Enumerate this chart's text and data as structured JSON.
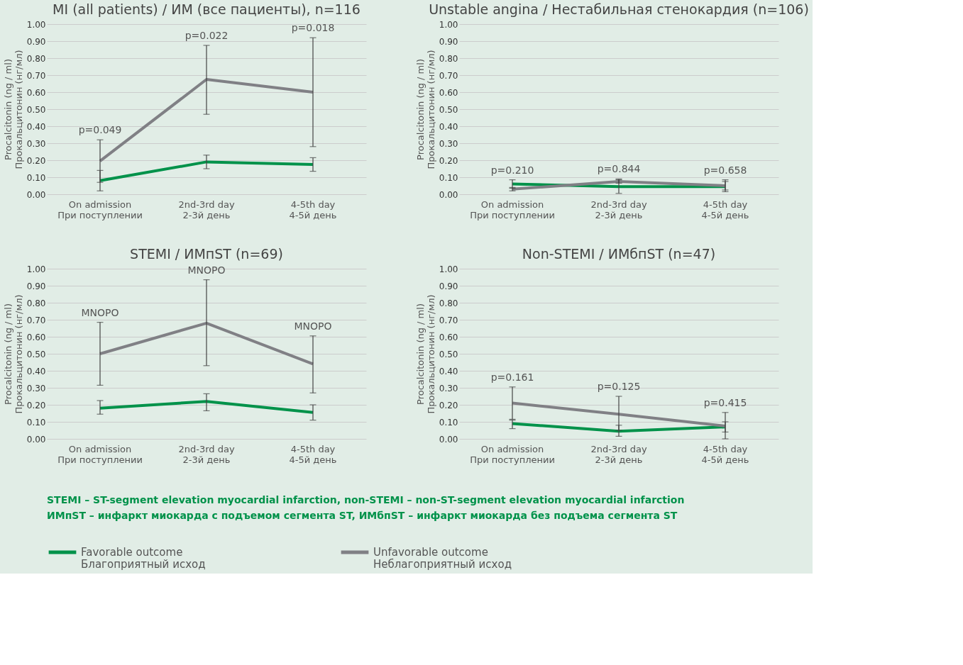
{
  "chart_data": [
    {
      "type": "line",
      "title": "MI (all patients) / ИМ (все пациенты), n=116",
      "ylabel": "Procalcitonin (ng / ml)\nПрокальцитонин (нг/мл)",
      "categories": [
        "On admission\nПри поступлении",
        "2nd-3rd day\n2-3й день",
        "4-5th day\n4-5й день"
      ],
      "ylim": [
        0,
        1
      ],
      "yticks": [
        {
          "value": 0,
          "label": "0.00"
        },
        {
          "value": 0.1,
          "label": "0.10"
        },
        {
          "value": 0.2,
          "label": "0.20"
        },
        {
          "value": 0.3,
          "label": "0.30"
        },
        {
          "value": 0.4,
          "label": "0.40"
        },
        {
          "value": 0.5,
          "label": "0.50"
        },
        {
          "value": 0.6,
          "label": "0.60"
        },
        {
          "value": 0.7,
          "label": "0.70"
        },
        {
          "value": 0.8,
          "label": "0.80"
        },
        {
          "value": 0.9,
          "label": "0.90"
        },
        {
          "value": 1,
          "label": "1.00"
        }
      ],
      "grid": "y",
      "legend": "bottom",
      "marker": "none",
      "line_style": "solid",
      "series": [
        {
          "name": "Favorable outcome\nБлагоприятный исход",
          "color": "#00924a",
          "values": [
            0.08,
            0.19,
            0.175
          ],
          "errors": [
            [
              0.02,
              0.14
            ],
            [
              0.15,
              0.23
            ],
            [
              0.135,
              0.215
            ]
          ]
        },
        {
          "name": "Unfavorable outcome\nНеблагоприятный исход",
          "color": "#808085",
          "values": [
            0.195,
            0.675,
            0.6
          ],
          "errors": [
            [
              0.07,
              0.32
            ],
            [
              0.47,
              0.875
            ],
            [
              0.28,
              0.92
            ]
          ]
        }
      ],
      "annotations": [
        "p=0.049",
        "p=0.022",
        "p=0.018"
      ]
    },
    {
      "type": "line",
      "title": "Unstable angina / Нестабильная стенокардия (n=106)",
      "ylabel": "Procalcitonin (ng / ml)\nПрокальцитонин (нг/мл)",
      "categories": [
        "On admission\nПри поступлении",
        "2nd-3rd day\n2-3й день",
        "4-5th day\n4-5й день"
      ],
      "ylim": [
        0,
        1
      ],
      "yticks": [
        {
          "value": 0,
          "label": "0.00"
        },
        {
          "value": 0.1,
          "label": "0.10"
        },
        {
          "value": 0.2,
          "label": "0.20"
        },
        {
          "value": 0.3,
          "label": "0.30"
        },
        {
          "value": 0.4,
          "label": "0.40"
        },
        {
          "value": 0.5,
          "label": "0.50"
        },
        {
          "value": 0.6,
          "label": "0.60"
        },
        {
          "value": 0.7,
          "label": "0.70"
        },
        {
          "value": 0.8,
          "label": "0.80"
        },
        {
          "value": 0.9,
          "label": "0.90"
        },
        {
          "value": 1,
          "label": "1.00"
        }
      ],
      "grid": "y",
      "legend": "bottom",
      "marker": "none",
      "line_style": "solid",
      "series": [
        {
          "name": "Favorable outcome\nБлагоприятный исход",
          "color": "#00924a",
          "values": [
            0.06,
            0.045,
            0.045
          ],
          "errors": [
            [
              0.035,
              0.085
            ],
            [
              0.005,
              0.085
            ],
            [
              0.015,
              0.075
            ]
          ]
        },
        {
          "name": "Unfavorable outcome\nНеблагоприятный исход",
          "color": "#808085",
          "values": [
            0.03,
            0.075,
            0.05
          ],
          "errors": [
            [
              0.02,
              0.04
            ],
            [
              0.065,
              0.09
            ],
            [
              0.025,
              0.085
            ]
          ]
        }
      ],
      "annotations": [
        "p=0.210",
        "p=0.844",
        "p=0.658"
      ]
    },
    {
      "type": "line",
      "title": "STEMI / ИМпST (n=69)",
      "ylabel": "Procalcitonin (ng / ml)\nПрокальцитонин (нг/мл)",
      "categories": [
        "On admission\nПри поступлении",
        "2nd-3rd day\n2-3й день",
        "4-5th day\n4-5й день"
      ],
      "ylim": [
        0,
        1
      ],
      "yticks": [
        {
          "value": 0,
          "label": "0.00"
        },
        {
          "value": 0.1,
          "label": "0.10"
        },
        {
          "value": 0.2,
          "label": "0.20"
        },
        {
          "value": 0.3,
          "label": "0.30"
        },
        {
          "value": 0.4,
          "label": "0.40"
        },
        {
          "value": 0.5,
          "label": "0.50"
        },
        {
          "value": 0.6,
          "label": "0.60"
        },
        {
          "value": 0.7,
          "label": "0.70"
        },
        {
          "value": 0.8,
          "label": "0.80"
        },
        {
          "value": 0.9,
          "label": "0.90"
        },
        {
          "value": 1,
          "label": "1.00"
        }
      ],
      "grid": "y",
      "legend": "bottom",
      "marker": "none",
      "line_style": "solid",
      "series": [
        {
          "name": "Favorable outcome\nБлагоприятный исход",
          "color": "#00924a",
          "values": [
            0.18,
            0.22,
            0.155
          ],
          "errors": [
            [
              0.145,
              0.225
            ],
            [
              0.165,
              0.265
            ],
            [
              0.11,
              0.2
            ]
          ]
        },
        {
          "name": "Unfavorable outcome\nНеблагоприятный исход",
          "color": "#808085",
          "values": [
            0.5,
            0.68,
            0.44
          ],
          "errors": [
            [
              0.315,
              0.685
            ],
            [
              0.43,
              0.935
            ],
            [
              0.27,
              0.605
            ]
          ]
        }
      ],
      "annotations": [
        "MNOPO",
        "MNOPO",
        "MNOPO"
      ]
    },
    {
      "type": "line",
      "title": "Non-STEMI / ИМбпST (n=47)",
      "ylabel": "Procalcitonin (ng / ml)\nПрокальцитонин (нг/мл)",
      "categories": [
        "On admission\nПри поступлении",
        "2nd-3rd day\n2-3й день",
        "4-5th day\n4-5й день"
      ],
      "ylim": [
        0,
        1
      ],
      "yticks": [
        {
          "value": 0,
          "label": "0.00"
        },
        {
          "value": 0.1,
          "label": "0.10"
        },
        {
          "value": 0.2,
          "label": "0.20"
        },
        {
          "value": 0.3,
          "label": "0.30"
        },
        {
          "value": 0.4,
          "label": "0.40"
        },
        {
          "value": 0.5,
          "label": "0.50"
        },
        {
          "value": 0.6,
          "label": "0.60"
        },
        {
          "value": 0.7,
          "label": "0.70"
        },
        {
          "value": 0.8,
          "label": "0.80"
        },
        {
          "value": 0.9,
          "label": "0.90"
        },
        {
          "value": 1,
          "label": "1.00"
        }
      ],
      "grid": "y",
      "legend": "bottom",
      "marker": "none",
      "line_style": "solid",
      "series": [
        {
          "name": "Favorable outcome\nБлагоприятный исход",
          "color": "#00924a",
          "values": [
            0.09,
            0.045,
            0.07
          ],
          "errors": [
            [
              0.06,
              0.11
            ],
            [
              0.015,
              0.08
            ],
            [
              0.04,
              0.1
            ]
          ]
        },
        {
          "name": "Unfavorable outcome\nНеблагоприятный исход",
          "color": "#808085",
          "values": [
            0.21,
            0.145,
            0.075
          ],
          "errors": [
            [
              0.115,
              0.305
            ],
            [
              0.05,
              0.25
            ],
            [
              0.0,
              0.155
            ]
          ]
        }
      ],
      "annotations": [
        "p=0.161",
        "p=0.125",
        "p=0.415",
        "STEMI – ST-segment elevation myocardial infarction, non-STEMI – non-ST-segment elevation myocardial infarction",
        "ИМпST – инфаркт миокарда с подъемом сегмента ST, ИМбпST – инфаркт миокарда без подъема сегмента ST"
      ]
    }
  ]
}
